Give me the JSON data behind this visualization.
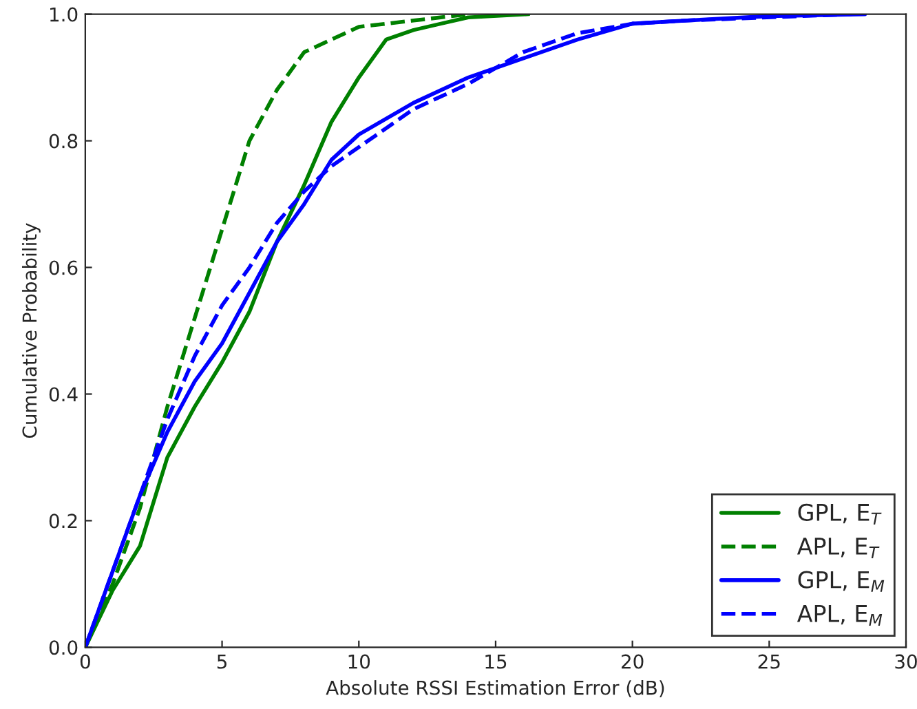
{
  "chart_data": {
    "type": "line",
    "xlabel": "Absolute RSSI Estimation Error (dB)",
    "ylabel": "Cumulative Probability",
    "xlim": [
      0,
      30
    ],
    "ylim": [
      0,
      1.0
    ],
    "xticks": [
      0,
      5,
      10,
      15,
      20,
      25,
      30
    ],
    "yticks": [
      {
        "value": 0,
        "label": "0.0"
      },
      0.2,
      0.4,
      0.6,
      0.8,
      {
        "value": 1,
        "label": "1.0"
      }
    ],
    "grid": false,
    "legend": "bottom right",
    "marker": "none",
    "series": [
      {
        "name": "GPL, E$_{T}$",
        "color": "#008000",
        "line_style": "solid",
        "x": [
          0,
          1,
          2,
          3,
          4,
          5,
          6,
          7,
          8,
          9,
          10,
          11,
          12,
          13,
          14,
          16.2
        ],
        "values": [
          0,
          0.09,
          0.16,
          0.3,
          0.38,
          0.45,
          0.53,
          0.64,
          0.73,
          0.83,
          0.9,
          0.96,
          0.975,
          0.985,
          0.995,
          1.0
        ]
      },
      {
        "name": "APL, E$_{T}$",
        "color": "#008000",
        "line_style": "dashed",
        "x": [
          0,
          1,
          2,
          3,
          4,
          5,
          6,
          7,
          8,
          9,
          10,
          12,
          14
        ],
        "values": [
          0,
          0.1,
          0.22,
          0.38,
          0.52,
          0.66,
          0.8,
          0.88,
          0.94,
          0.96,
          0.98,
          0.99,
          1.0
        ]
      },
      {
        "name": "GPL, E$_{M}$",
        "color": "#0000ff",
        "line_style": "solid",
        "x": [
          0,
          1,
          2,
          3,
          4,
          5,
          6,
          7,
          8,
          9,
          10,
          12,
          14,
          16,
          18,
          20,
          22,
          25,
          28.5
        ],
        "values": [
          0,
          0.12,
          0.24,
          0.34,
          0.42,
          0.48,
          0.56,
          0.64,
          0.7,
          0.77,
          0.81,
          0.86,
          0.9,
          0.93,
          0.96,
          0.985,
          0.99,
          0.997,
          1.0
        ]
      },
      {
        "name": "APL, E$_{M}$",
        "color": "#0000ff",
        "line_style": "dashed",
        "x": [
          0,
          1,
          2,
          3,
          4,
          5,
          6,
          7,
          8,
          9,
          10,
          11,
          12,
          14,
          16,
          18,
          20,
          22,
          28
        ],
        "values": [
          0,
          0.12,
          0.24,
          0.36,
          0.46,
          0.54,
          0.6,
          0.67,
          0.72,
          0.76,
          0.79,
          0.82,
          0.85,
          0.89,
          0.94,
          0.97,
          0.985,
          0.99,
          1.0
        ]
      }
    ]
  }
}
